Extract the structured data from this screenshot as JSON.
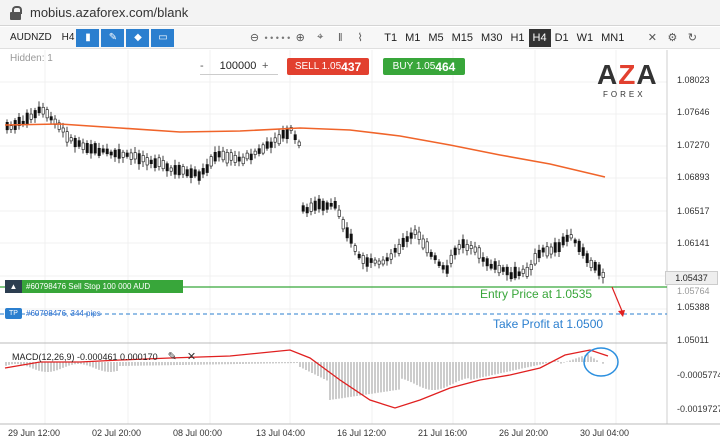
{
  "browser": {
    "url": "mobius.azaforex.com/blank"
  },
  "toolbar": {
    "symbol": "AUDNZD",
    "timeframe": "H4",
    "tools": [
      "bar-chart-icon",
      "pen-icon",
      "diamond-icon",
      "display-icon"
    ],
    "zoom_icons": [
      "zoom-out-icon",
      "zoom-in-icon"
    ],
    "timeframes": [
      "T1",
      "M1",
      "M5",
      "M15",
      "M30",
      "H1",
      "H4",
      "D1",
      "W1",
      "MN1"
    ],
    "active_timeframe": "H4"
  },
  "chart": {
    "hidden_label": "Hidden: 1",
    "quantity": "100000",
    "qty_minus": "-",
    "qty_plus": "+",
    "sell_label": "SELL 1.05",
    "sell_big": "437",
    "buy_label": "BUY 1.05",
    "buy_big": "464",
    "logo_main_a": "A",
    "logo_main_z": "Z",
    "logo_main_b": "A",
    "logo_sub": "FOREX",
    "current_price": "1.05437",
    "order_tag": "#60798476 Sell Stop 100 000 AUD",
    "order_icon": "▲",
    "tp_tag": "#60798476, 344 pips",
    "tp_icon": "TP",
    "entry_label": "Entry Price at 1.0535",
    "tp_label": "Take Profit at 1.0500",
    "y_ticks": [
      "1.08023",
      "1.07646",
      "1.07270",
      "1.06893",
      "1.06517",
      "1.06141",
      "1.05764",
      "1.05388",
      "1.05011"
    ],
    "macd_label": "MACD(12,26,9) -0.000461 0.000170",
    "macd_ticks": [
      "-0.0005774",
      "-0.0019727"
    ],
    "x_ticks": [
      "29 Jun 12:00",
      "02 Jul 20:00",
      "08 Jul 00:00",
      "13 Jul 04:00",
      "16 Jul 12:00",
      "21 Jul 16:00",
      "26 Jul 20:00",
      "30 Jul 04:00"
    ],
    "colors": {
      "sell": "#e2402f",
      "buy": "#38a63a",
      "ma": "#f0642a",
      "tp": "#2b7fcf",
      "macd": "#e02020"
    }
  }
}
